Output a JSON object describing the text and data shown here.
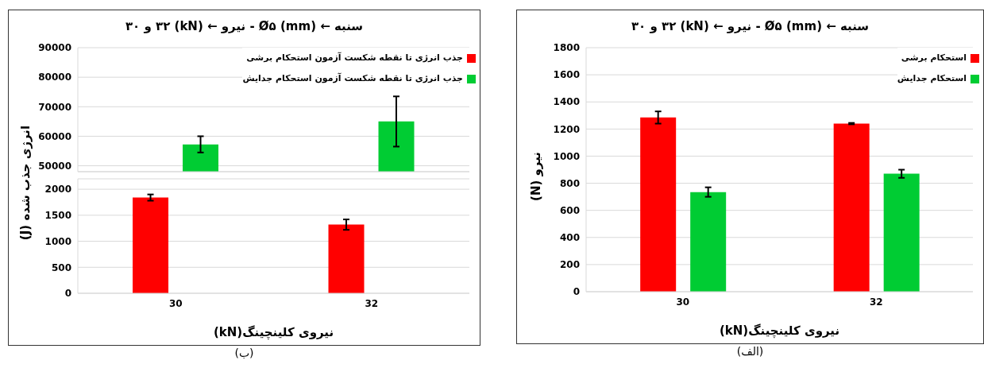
{
  "chart_data": [
    {
      "type": "bar",
      "title": "سنبه ← (mm) Ø۵ - نیرو ← (kN) ۳۲ و ۳۰",
      "ylabel": "انرژی جذب شده (J)",
      "categories": [
        "30",
        "32"
      ],
      "ylim": [
        48000,
        90000
      ],
      "yticks": [
        50000,
        60000,
        70000,
        80000,
        90000
      ],
      "grid": "y",
      "legend": "top right",
      "tick_labels": "y",
      "series": [
        {
          "name": "جذب انرژی تا نقطه شکست آزمون استحکام برشی",
          "color": "#ff0000",
          "values": [
            null,
            null
          ]
        },
        {
          "name": "جذب انرژی تا نقطه شکست آزمون استحکام جدایش",
          "color": "#00cc33",
          "values": [
            57200,
            65000
          ],
          "errors": [
            [
              54500,
              60000
            ],
            [
              56500,
              73500
            ]
          ]
        }
      ]
    },
    {
      "type": "bar",
      "xlabel": "نیروی کلینچینگ(kN)",
      "categories": [
        "30",
        "32"
      ],
      "ylim": [
        0,
        2200
      ],
      "yticks": [
        0,
        500,
        1000,
        1500,
        2000
      ],
      "grid": "y",
      "annotations": [
        "(ب)"
      ],
      "series": [
        {
          "color": "#ff0000",
          "values": [
            1840,
            1320
          ],
          "errors": [
            [
              1780,
              1900
            ],
            [
              1220,
              1420
            ]
          ]
        },
        {
          "color": "#00cc33",
          "values": [
            null,
            null
          ]
        }
      ]
    },
    {
      "type": "bar",
      "title": "سنبه ← (mm) Ø۵ - نیرو ← (kN) ۳۲ و ۳۰",
      "xlabel": "نیروی کلینچینگ(kN)",
      "ylabel": "نیرو (N)",
      "categories": [
        "30",
        "32"
      ],
      "ylim": [
        0,
        1800
      ],
      "yticks": [
        0,
        200,
        400,
        600,
        800,
        1000,
        1200,
        1400,
        1600,
        1800
      ],
      "grid": "y",
      "legend": "top right",
      "annotations": [
        "(الف)"
      ],
      "series": [
        {
          "name": "استحکام برشی",
          "color": "#ff0000",
          "values": [
            1285,
            1240
          ],
          "errors": [
            [
              1240,
              1330
            ],
            [
              1235,
              1245
            ]
          ]
        },
        {
          "name": "استحکام جدایش",
          "color": "#00cc33",
          "values": [
            735,
            870
          ],
          "errors": [
            [
              700,
              770
            ],
            [
              840,
              900
            ]
          ]
        }
      ]
    }
  ]
}
